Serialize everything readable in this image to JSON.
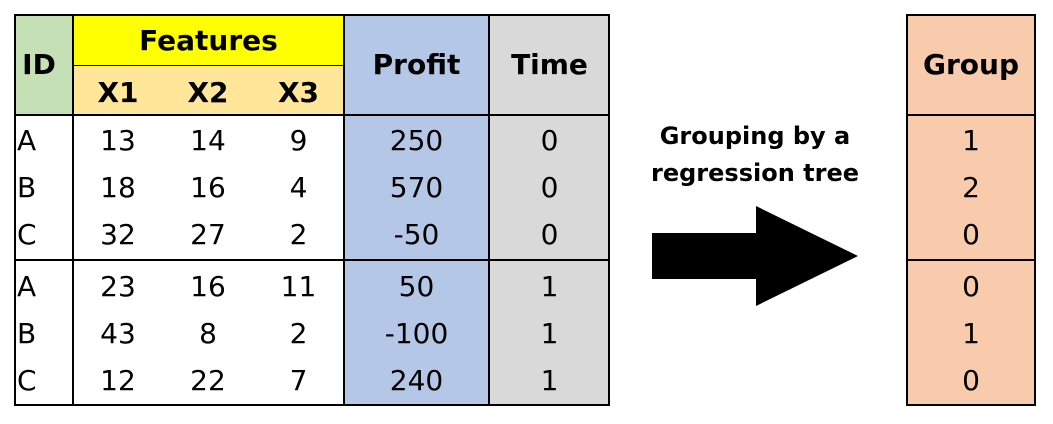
{
  "colors": {
    "id_header": "#c5e0b4",
    "features_header": "#ffff00",
    "x_header": "#ffe699",
    "profit": "#b4c7e7",
    "time": "#d9d9d9",
    "group": "#f8cbad"
  },
  "table": {
    "header": {
      "id": "ID",
      "features": "Features",
      "x1": "X1",
      "x2": "X2",
      "x3": "X3",
      "profit": "Profit",
      "time": "Time"
    },
    "rows": [
      {
        "id": "A",
        "x1": "13",
        "x2": "14",
        "x3": "9",
        "profit": "250",
        "time": "0"
      },
      {
        "id": "B",
        "x1": "18",
        "x2": "16",
        "x3": "4",
        "profit": "570",
        "time": "0"
      },
      {
        "id": "C",
        "x1": "32",
        "x2": "27",
        "x3": "2",
        "profit": "-50",
        "time": "0"
      },
      {
        "id": "A",
        "x1": "23",
        "x2": "16",
        "x3": "11",
        "profit": "50",
        "time": "1"
      },
      {
        "id": "B",
        "x1": "43",
        "x2": "8",
        "x3": "2",
        "profit": "-100",
        "time": "1"
      },
      {
        "id": "C",
        "x1": "12",
        "x2": "22",
        "x3": "7",
        "profit": "240",
        "time": "1"
      }
    ]
  },
  "arrow": {
    "label_line1": "Grouping by a",
    "label_line2": "regression tree",
    "icon": "right-arrow-icon"
  },
  "group_table": {
    "header": "Group",
    "values": [
      "1",
      "2",
      "0",
      "0",
      "1",
      "0"
    ]
  }
}
